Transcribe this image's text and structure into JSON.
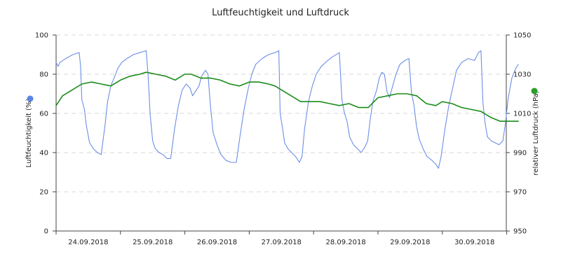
{
  "chart_data": {
    "type": "line",
    "title": "Luftfeuchtigkeit und Luftdruck",
    "x_labels": [
      "24.09.2018",
      "25.09.2018",
      "26.09.2018",
      "27.09.2018",
      "28.09.2018",
      "29.09.2018",
      "30.09.2018"
    ],
    "x_range_days": [
      0,
      7
    ],
    "left_axis": {
      "label": "Luftfeuchtigkeit (%)",
      "min": 0,
      "max": 100,
      "ticks": [
        "0",
        "20",
        "40",
        "60",
        "80",
        "100"
      ]
    },
    "right_axis": {
      "label": "relativer Luftdruck (hPa)",
      "min": 950,
      "max": 1050,
      "ticks": [
        "950",
        "970",
        "990",
        "1010",
        "1030",
        "1050"
      ]
    },
    "grid": true,
    "series": [
      {
        "axis": "left",
        "color": "#6b8ee6",
        "marker_color": "#5b86e5",
        "points": [
          [
            0.0,
            86
          ],
          [
            0.03,
            84
          ],
          [
            0.06,
            86
          ],
          [
            0.15,
            88
          ],
          [
            0.26,
            90
          ],
          [
            0.36,
            91
          ],
          [
            0.38,
            84
          ],
          [
            0.4,
            67
          ],
          [
            0.44,
            62
          ],
          [
            0.47,
            54
          ],
          [
            0.52,
            45
          ],
          [
            0.58,
            42
          ],
          [
            0.64,
            40
          ],
          [
            0.7,
            39
          ],
          [
            0.76,
            54
          ],
          [
            0.8,
            66
          ],
          [
            0.85,
            74
          ],
          [
            0.9,
            78
          ],
          [
            0.96,
            83
          ],
          [
            1.02,
            86
          ],
          [
            1.1,
            88
          ],
          [
            1.2,
            90
          ],
          [
            1.3,
            91
          ],
          [
            1.4,
            92
          ],
          [
            1.43,
            79
          ],
          [
            1.46,
            60
          ],
          [
            1.5,
            46
          ],
          [
            1.54,
            42
          ],
          [
            1.6,
            40
          ],
          [
            1.66,
            39
          ],
          [
            1.72,
            37
          ],
          [
            1.78,
            37
          ],
          [
            1.84,
            52
          ],
          [
            1.9,
            64
          ],
          [
            1.96,
            72
          ],
          [
            2.02,
            75
          ],
          [
            2.08,
            73
          ],
          [
            2.12,
            69
          ],
          [
            2.16,
            71
          ],
          [
            2.22,
            74
          ],
          [
            2.26,
            79
          ],
          [
            2.32,
            82
          ],
          [
            2.36,
            80
          ],
          [
            2.4,
            63
          ],
          [
            2.44,
            50
          ],
          [
            2.5,
            44
          ],
          [
            2.56,
            39
          ],
          [
            2.64,
            36
          ],
          [
            2.72,
            35
          ],
          [
            2.8,
            35
          ],
          [
            2.86,
            49
          ],
          [
            2.92,
            62
          ],
          [
            2.98,
            72
          ],
          [
            3.04,
            80
          ],
          [
            3.1,
            85
          ],
          [
            3.2,
            88
          ],
          [
            3.3,
            90
          ],
          [
            3.4,
            91
          ],
          [
            3.46,
            92
          ],
          [
            3.48,
            60
          ],
          [
            3.52,
            52
          ],
          [
            3.55,
            45
          ],
          [
            3.6,
            42
          ],
          [
            3.66,
            40
          ],
          [
            3.72,
            38
          ],
          [
            3.78,
            35
          ],
          [
            3.82,
            38
          ],
          [
            3.86,
            52
          ],
          [
            3.92,
            66
          ],
          [
            3.98,
            74
          ],
          [
            4.04,
            80
          ],
          [
            4.12,
            84
          ],
          [
            4.22,
            87
          ],
          [
            4.3,
            89
          ],
          [
            4.4,
            91
          ],
          [
            4.44,
            67
          ],
          [
            4.48,
            60
          ],
          [
            4.52,
            56
          ],
          [
            4.56,
            48
          ],
          [
            4.62,
            44
          ],
          [
            4.68,
            42
          ],
          [
            4.74,
            40
          ],
          [
            4.8,
            43
          ],
          [
            4.84,
            46
          ],
          [
            4.88,
            57
          ],
          [
            4.92,
            66
          ],
          [
            4.98,
            72
          ],
          [
            5.02,
            78
          ],
          [
            5.06,
            81
          ],
          [
            5.1,
            80
          ],
          [
            5.14,
            71
          ],
          [
            5.18,
            68
          ],
          [
            5.22,
            73
          ],
          [
            5.28,
            80
          ],
          [
            5.34,
            85
          ],
          [
            5.42,
            87
          ],
          [
            5.48,
            88
          ],
          [
            5.52,
            71
          ],
          [
            5.56,
            64
          ],
          [
            5.6,
            53
          ],
          [
            5.64,
            47
          ],
          [
            5.7,
            42
          ],
          [
            5.76,
            38
          ],
          [
            5.84,
            36
          ],
          [
            5.9,
            34
          ],
          [
            5.94,
            32
          ],
          [
            5.98,
            38
          ],
          [
            6.04,
            52
          ],
          [
            6.1,
            64
          ],
          [
            6.16,
            73
          ],
          [
            6.22,
            82
          ],
          [
            6.3,
            86
          ],
          [
            6.4,
            88
          ],
          [
            6.5,
            87
          ],
          [
            6.56,
            91
          ],
          [
            6.6,
            92
          ],
          [
            6.63,
            66
          ],
          [
            6.66,
            56
          ],
          [
            6.7,
            48
          ],
          [
            6.76,
            46
          ],
          [
            6.82,
            45
          ],
          [
            6.88,
            44
          ],
          [
            6.94,
            46
          ],
          [
            6.98,
            55
          ],
          [
            7.02,
            67
          ],
          [
            7.08,
            78
          ],
          [
            7.14,
            83
          ],
          [
            7.18,
            85
          ]
        ]
      },
      {
        "axis": "right",
        "color": "#1a8c1a",
        "marker_color": "#2aa02a",
        "points": [
          [
            0.0,
            1014
          ],
          [
            0.1,
            1019
          ],
          [
            0.25,
            1022
          ],
          [
            0.4,
            1025
          ],
          [
            0.55,
            1026
          ],
          [
            0.7,
            1025
          ],
          [
            0.85,
            1024
          ],
          [
            1.0,
            1027
          ],
          [
            1.15,
            1029
          ],
          [
            1.3,
            1030
          ],
          [
            1.4,
            1031
          ],
          [
            1.55,
            1030
          ],
          [
            1.7,
            1029
          ],
          [
            1.85,
            1027
          ],
          [
            2.0,
            1030
          ],
          [
            2.1,
            1030
          ],
          [
            2.25,
            1028
          ],
          [
            2.4,
            1028
          ],
          [
            2.55,
            1027
          ],
          [
            2.7,
            1025
          ],
          [
            2.85,
            1024
          ],
          [
            3.0,
            1026
          ],
          [
            3.15,
            1026
          ],
          [
            3.3,
            1025
          ],
          [
            3.4,
            1024
          ],
          [
            3.5,
            1022
          ],
          [
            3.65,
            1019
          ],
          [
            3.8,
            1016
          ],
          [
            3.95,
            1016
          ],
          [
            4.1,
            1016
          ],
          [
            4.25,
            1015
          ],
          [
            4.4,
            1014
          ],
          [
            4.55,
            1015
          ],
          [
            4.7,
            1013
          ],
          [
            4.85,
            1013
          ],
          [
            5.0,
            1018
          ],
          [
            5.15,
            1019
          ],
          [
            5.3,
            1020
          ],
          [
            5.45,
            1020
          ],
          [
            5.6,
            1019
          ],
          [
            5.75,
            1015
          ],
          [
            5.9,
            1014
          ],
          [
            6.0,
            1016
          ],
          [
            6.15,
            1015
          ],
          [
            6.3,
            1013
          ],
          [
            6.45,
            1012
          ],
          [
            6.6,
            1011
          ],
          [
            6.75,
            1008
          ],
          [
            6.9,
            1006
          ],
          [
            7.05,
            1006
          ],
          [
            7.18,
            1006
          ]
        ]
      }
    ]
  }
}
